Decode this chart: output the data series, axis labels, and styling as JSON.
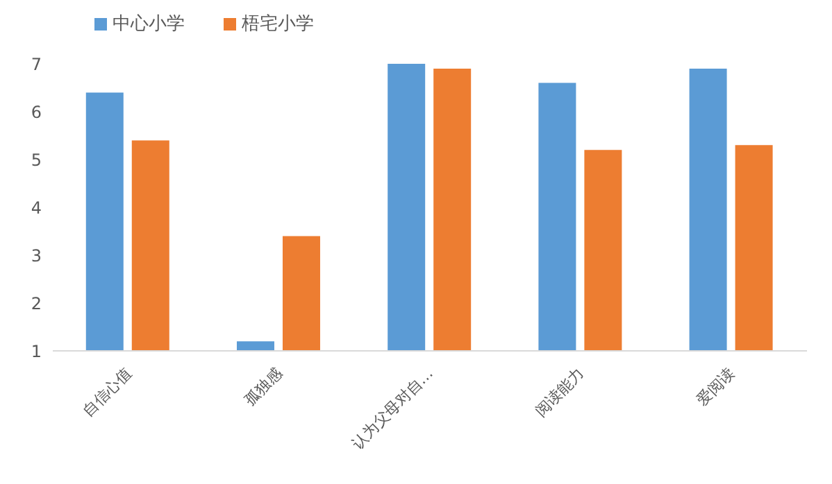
{
  "chart_data": {
    "type": "bar",
    "categories": [
      "自信心值",
      "孤独感",
      "认为父母对自…",
      "阅读能力",
      "爱阅读"
    ],
    "series": [
      {
        "name": "中心小学",
        "color": "#5b9bd5",
        "values": [
          6.4,
          1.2,
          7.0,
          6.6,
          6.9
        ]
      },
      {
        "name": "梧宅小学",
        "color": "#ed7d31",
        "values": [
          5.4,
          3.4,
          6.9,
          5.2,
          5.3
        ]
      }
    ],
    "ylim": [
      1,
      7
    ],
    "yticks": [
      1,
      2,
      3,
      4,
      5,
      6,
      7
    ],
    "grid": false,
    "legend": "top left"
  }
}
